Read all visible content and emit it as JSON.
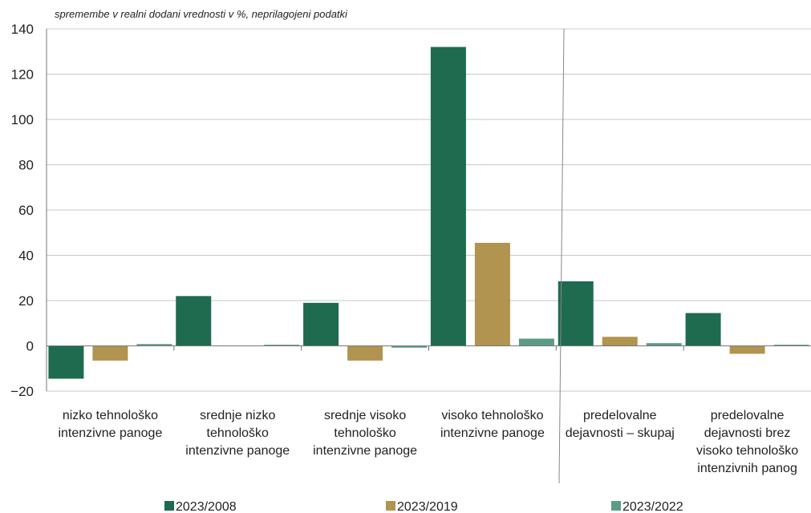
{
  "chart_data": {
    "type": "bar",
    "subtitle": "spremembe v realni dodani vrednosti v %, neprilagojeni podatki",
    "categories": [
      [
        "nizko tehnološko",
        "intenzivne panoge"
      ],
      [
        "srednje nizko",
        "tehnološko",
        "intenzivne panoge"
      ],
      [
        "srednje visoko",
        "tehnološko",
        "intenzivne panoge"
      ],
      [
        "visoko tehnološko",
        "intenzivne panoge"
      ],
      [
        "predelovalne",
        "dejavnosti – skupaj"
      ],
      [
        "predelovalne",
        "dejavnosti brez",
        "visoko tehnološko",
        "intenzivnih panog"
      ]
    ],
    "series": [
      {
        "name": "2023/2008",
        "color": "#1e6b50",
        "values": [
          -14.5,
          22,
          19,
          132,
          28.5,
          14.5
        ]
      },
      {
        "name": "2023/2019",
        "color": "#b0944f",
        "values": [
          -6.5,
          0,
          -6.5,
          45.5,
          4,
          -3.5
        ]
      },
      {
        "name": "2023/2022",
        "color": "#5d9b84",
        "values": [
          0.8,
          0.5,
          -0.8,
          3.2,
          1.2,
          0.5
        ]
      }
    ],
    "yticks": [
      "−20",
      "0",
      "20",
      "40",
      "60",
      "80",
      "100",
      "120",
      "140"
    ],
    "ylim": [
      -20,
      140
    ],
    "gridlines": true,
    "separator_after_category": 3,
    "legend_position": "bottom"
  }
}
